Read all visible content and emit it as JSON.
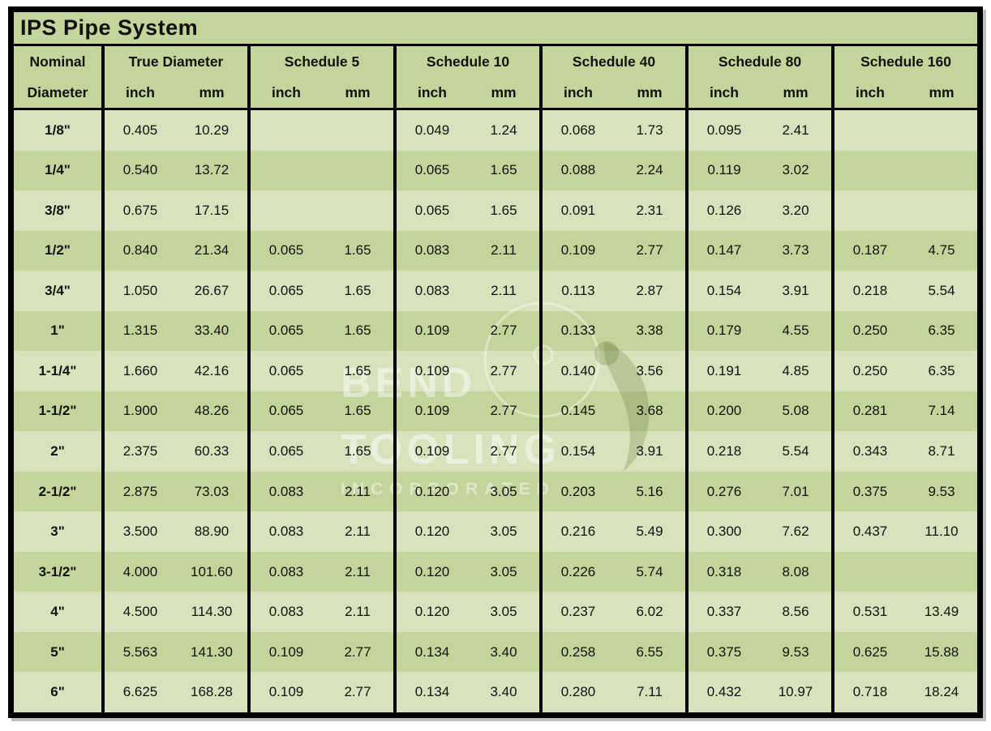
{
  "page": {
    "title": "IPS Pipe System"
  },
  "table": {
    "nominal_header": {
      "line1": "Nominal",
      "line2": "Diameter"
    },
    "groups": [
      {
        "key": "true_diameter",
        "label": "True Diameter",
        "sub": [
          "inch",
          "mm"
        ]
      },
      {
        "key": "schedule_5",
        "label": "Schedule 5",
        "sub": [
          "inch",
          "mm"
        ]
      },
      {
        "key": "schedule_10",
        "label": "Schedule 10",
        "sub": [
          "inch",
          "mm"
        ]
      },
      {
        "key": "schedule_40",
        "label": "Schedule 40",
        "sub": [
          "inch",
          "mm"
        ]
      },
      {
        "key": "schedule_80",
        "label": "Schedule 80",
        "sub": [
          "inch",
          "mm"
        ]
      },
      {
        "key": "schedule_160",
        "label": "Schedule 160",
        "sub": [
          "inch",
          "mm"
        ]
      }
    ],
    "rows": [
      {
        "nominal": "1/8\"",
        "true_diameter": [
          "0.405",
          "10.29"
        ],
        "schedule_5": [
          "",
          ""
        ],
        "schedule_10": [
          "0.049",
          "1.24"
        ],
        "schedule_40": [
          "0.068",
          "1.73"
        ],
        "schedule_80": [
          "0.095",
          "2.41"
        ],
        "schedule_160": [
          "",
          ""
        ]
      },
      {
        "nominal": "1/4\"",
        "true_diameter": [
          "0.540",
          "13.72"
        ],
        "schedule_5": [
          "",
          ""
        ],
        "schedule_10": [
          "0.065",
          "1.65"
        ],
        "schedule_40": [
          "0.088",
          "2.24"
        ],
        "schedule_80": [
          "0.119",
          "3.02"
        ],
        "schedule_160": [
          "",
          ""
        ]
      },
      {
        "nominal": "3/8\"",
        "true_diameter": [
          "0.675",
          "17.15"
        ],
        "schedule_5": [
          "",
          ""
        ],
        "schedule_10": [
          "0.065",
          "1.65"
        ],
        "schedule_40": [
          "0.091",
          "2.31"
        ],
        "schedule_80": [
          "0.126",
          "3.20"
        ],
        "schedule_160": [
          "",
          ""
        ]
      },
      {
        "nominal": "1/2\"",
        "true_diameter": [
          "0.840",
          "21.34"
        ],
        "schedule_5": [
          "0.065",
          "1.65"
        ],
        "schedule_10": [
          "0.083",
          "2.11"
        ],
        "schedule_40": [
          "0.109",
          "2.77"
        ],
        "schedule_80": [
          "0.147",
          "3.73"
        ],
        "schedule_160": [
          "0.187",
          "4.75"
        ]
      },
      {
        "nominal": "3/4\"",
        "true_diameter": [
          "1.050",
          "26.67"
        ],
        "schedule_5": [
          "0.065",
          "1.65"
        ],
        "schedule_10": [
          "0.083",
          "2.11"
        ],
        "schedule_40": [
          "0.113",
          "2.87"
        ],
        "schedule_80": [
          "0.154",
          "3.91"
        ],
        "schedule_160": [
          "0.218",
          "5.54"
        ]
      },
      {
        "nominal": "1\"",
        "true_diameter": [
          "1.315",
          "33.40"
        ],
        "schedule_5": [
          "0.065",
          "1.65"
        ],
        "schedule_10": [
          "0.109",
          "2.77"
        ],
        "schedule_40": [
          "0.133",
          "3.38"
        ],
        "schedule_80": [
          "0.179",
          "4.55"
        ],
        "schedule_160": [
          "0.250",
          "6.35"
        ]
      },
      {
        "nominal": "1-1/4\"",
        "true_diameter": [
          "1.660",
          "42.16"
        ],
        "schedule_5": [
          "0.065",
          "1.65"
        ],
        "schedule_10": [
          "0.109",
          "2.77"
        ],
        "schedule_40": [
          "0.140",
          "3.56"
        ],
        "schedule_80": [
          "0.191",
          "4.85"
        ],
        "schedule_160": [
          "0.250",
          "6.35"
        ]
      },
      {
        "nominal": "1-1/2\"",
        "true_diameter": [
          "1.900",
          "48.26"
        ],
        "schedule_5": [
          "0.065",
          "1.65"
        ],
        "schedule_10": [
          "0.109",
          "2.77"
        ],
        "schedule_40": [
          "0.145",
          "3.68"
        ],
        "schedule_80": [
          "0.200",
          "5.08"
        ],
        "schedule_160": [
          "0.281",
          "7.14"
        ]
      },
      {
        "nominal": "2\"",
        "true_diameter": [
          "2.375",
          "60.33"
        ],
        "schedule_5": [
          "0.065",
          "1.65"
        ],
        "schedule_10": [
          "0.109",
          "2.77"
        ],
        "schedule_40": [
          "0.154",
          "3.91"
        ],
        "schedule_80": [
          "0.218",
          "5.54"
        ],
        "schedule_160": [
          "0.343",
          "8.71"
        ]
      },
      {
        "nominal": "2-1/2\"",
        "true_diameter": [
          "2.875",
          "73.03"
        ],
        "schedule_5": [
          "0.083",
          "2.11"
        ],
        "schedule_10": [
          "0.120",
          "3.05"
        ],
        "schedule_40": [
          "0.203",
          "5.16"
        ],
        "schedule_80": [
          "0.276",
          "7.01"
        ],
        "schedule_160": [
          "0.375",
          "9.53"
        ]
      },
      {
        "nominal": "3\"",
        "true_diameter": [
          "3.500",
          "88.90"
        ],
        "schedule_5": [
          "0.083",
          "2.11"
        ],
        "schedule_10": [
          "0.120",
          "3.05"
        ],
        "schedule_40": [
          "0.216",
          "5.49"
        ],
        "schedule_80": [
          "0.300",
          "7.62"
        ],
        "schedule_160": [
          "0.437",
          "11.10"
        ]
      },
      {
        "nominal": "3-1/2\"",
        "true_diameter": [
          "4.000",
          "101.60"
        ],
        "schedule_5": [
          "0.083",
          "2.11"
        ],
        "schedule_10": [
          "0.120",
          "3.05"
        ],
        "schedule_40": [
          "0.226",
          "5.74"
        ],
        "schedule_80": [
          "0.318",
          "8.08"
        ],
        "schedule_160": [
          "",
          ""
        ]
      },
      {
        "nominal": "4\"",
        "true_diameter": [
          "4.500",
          "114.30"
        ],
        "schedule_5": [
          "0.083",
          "2.11"
        ],
        "schedule_10": [
          "0.120",
          "3.05"
        ],
        "schedule_40": [
          "0.237",
          "6.02"
        ],
        "schedule_80": [
          "0.337",
          "8.56"
        ],
        "schedule_160": [
          "0.531",
          "13.49"
        ]
      },
      {
        "nominal": "5\"",
        "true_diameter": [
          "5.563",
          "141.30"
        ],
        "schedule_5": [
          "0.109",
          "2.77"
        ],
        "schedule_10": [
          "0.134",
          "3.40"
        ],
        "schedule_40": [
          "0.258",
          "6.55"
        ],
        "schedule_80": [
          "0.375",
          "9.53"
        ],
        "schedule_160": [
          "0.625",
          "15.88"
        ]
      },
      {
        "nominal": "6\"",
        "true_diameter": [
          "6.625",
          "168.28"
        ],
        "schedule_5": [
          "0.109",
          "2.77"
        ],
        "schedule_10": [
          "0.134",
          "3.40"
        ],
        "schedule_40": [
          "0.280",
          "7.11"
        ],
        "schedule_80": [
          "0.432",
          "10.97"
        ],
        "schedule_160": [
          "0.718",
          "18.24"
        ]
      }
    ]
  },
  "watermark": {
    "line1": "BEND",
    "line2": "TOOLING",
    "line3": "INCORPORATED"
  },
  "colors": {
    "header_green": "#c4d59b",
    "row_light": "#d8e3bd",
    "row_dark": "#c4d59b",
    "border": "#000000",
    "text": "#111111"
  }
}
